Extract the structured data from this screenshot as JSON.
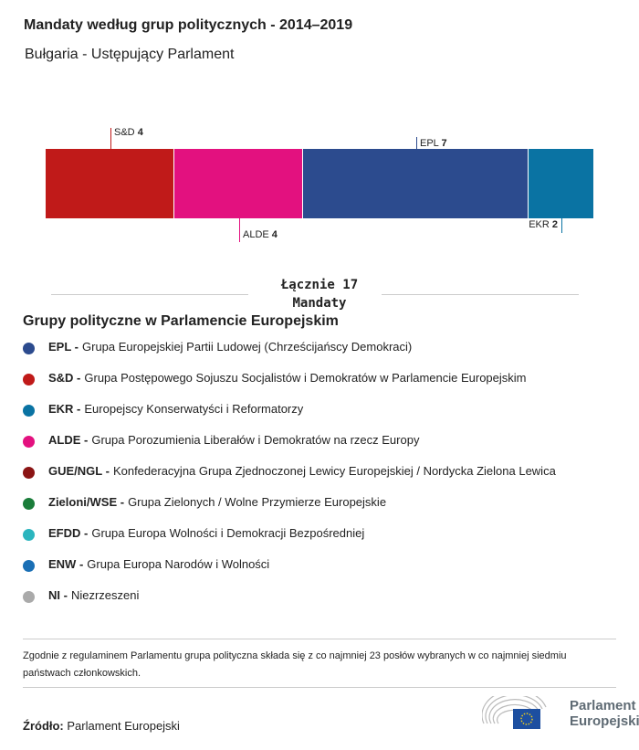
{
  "title": "Mandaty według grup politycznych - 2014–2019",
  "subtitle": "Bułgaria - Ustępujący Parlament",
  "chart_data": {
    "type": "bar",
    "orientation": "stacked-horizontal",
    "total": 17,
    "segments": [
      {
        "name": "S&D",
        "value": 4,
        "color": "#c01a19",
        "label_pos": "top"
      },
      {
        "name": "ALDE",
        "value": 4,
        "color": "#e3117f",
        "label_pos": "bottom"
      },
      {
        "name": "EPL",
        "value": 7,
        "color": "#2c4b8e",
        "label_pos": "top"
      },
      {
        "name": "EKR",
        "value": 2,
        "color": "#0a73a3",
        "label_pos": "bottom"
      }
    ]
  },
  "total_label": "Łącznie 17",
  "total_unit": "Mandaty",
  "legend_title": "Grupy polityczne w Parlamencie Europejskim",
  "legend": [
    {
      "abbr": "EPL -",
      "name": "Grupa Europejskiej Partii Ludowej (Chrześcijańscy Demokraci)",
      "color": "#2c4b8e"
    },
    {
      "abbr": "S&D -",
      "name": "Grupa Postępowego Sojuszu Socjalistów i Demokratów w Parlamencie Europejskim",
      "color": "#c01a19"
    },
    {
      "abbr": "EKR -",
      "name": "Europejscy Konserwatyści i Reformatorzy",
      "color": "#0a73a3"
    },
    {
      "abbr": "ALDE -",
      "name": "Grupa Porozumienia Liberałów i Demokratów na rzecz Europy",
      "color": "#e3117f"
    },
    {
      "abbr": "GUE/NGL -",
      "name": "Konfederacyjna Grupa Zjednoczonej Lewicy Europejskiej / Nordycka Zielona Lewica",
      "color": "#8b1414"
    },
    {
      "abbr": "Zieloni/WSE -",
      "name": "Grupa Zielonych / Wolne Przymierze Europejskie",
      "color": "#1a7d3a"
    },
    {
      "abbr": "EFDD -",
      "name": "Grupa Europa Wolności i Demokracji Bezpośredniej",
      "color": "#2bb5be"
    },
    {
      "abbr": "ENW -",
      "name": "Grupa Europa Narodów i Wolności",
      "color": "#1a6fb5"
    },
    {
      "abbr": "NI -",
      "name": "Niezrzeszeni",
      "color": "#aaaaaa"
    }
  ],
  "note": "Zgodnie z regulaminem Parlamentu grupa polityczna składa się z co najmniej 23 posłów wybranych w co najmniej siedmiu państwach członkowskich.",
  "source_label": "Źródło:",
  "source": "Parlament Europejski",
  "logo": {
    "line1": "Parlament",
    "line2": "Europejski"
  }
}
